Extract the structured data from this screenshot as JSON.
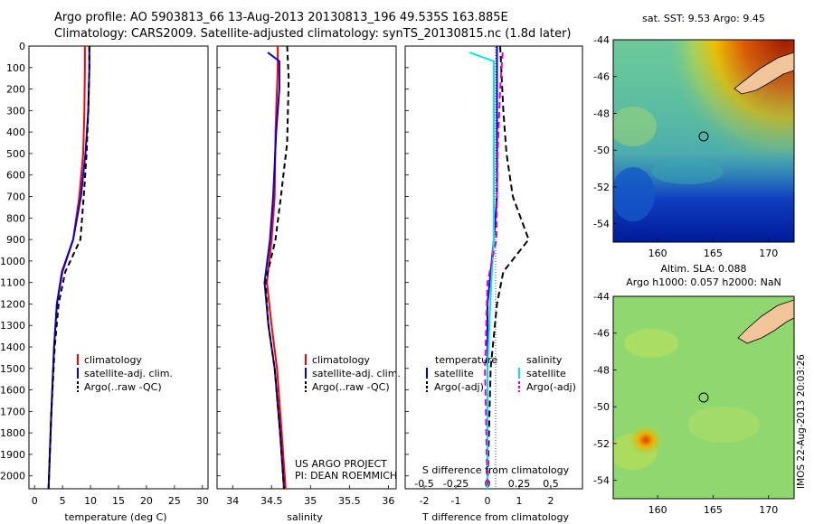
{
  "title_line1": "Argo profile: AO 5903813_66 13-Aug-2013 20130813_196 49.535S 163.885E",
  "title_line2": "Climatology: CARS2009. Satellite-adjusted climatology: synTS_20130815.nc (1.8d later)",
  "depth_ticks": [
    "0",
    "100",
    "200",
    "300",
    "400",
    "500",
    "600",
    "700",
    "800",
    "900",
    "1000",
    "1100",
    "1200",
    "1300",
    "1400",
    "1500",
    "1600",
    "1700",
    "1800",
    "1900",
    "2000"
  ],
  "colors": {
    "clim": "#ff0000",
    "sat": "#0000dd",
    "argo": "#000000",
    "sat_s": "#00e5e5",
    "argo_s": "#e000e0",
    "ocean_deep": "#001a9a",
    "land": "#f2c49a"
  },
  "legend_labels": {
    "clim": "climatology",
    "sat": "satellite-adj. clim.",
    "argo": "Argo(..raw -QC)"
  },
  "diff_legend": {
    "temp_header": "temperature",
    "sal_header": "salinity",
    "sat": "satellite",
    "argo": "Argo(-adj)"
  },
  "project": {
    "line1": "US ARGO PROJECT",
    "line2": "PI: DEAN ROEMMICH"
  },
  "maps": {
    "sst_title": "sat. SST: 9.53 Argo: 9.45",
    "sla_title1": "Altim. SLA: 0.088",
    "sla_title2": "Argo h1000: 0.057 h2000: NaN",
    "lat_ticks": [
      "-44",
      "-46",
      "-48",
      "-50",
      "-52",
      "-54"
    ],
    "lon_ticks": [
      "160",
      "165",
      "170"
    ],
    "stamp": "IMOS 22-Aug-2013 20:03:26"
  },
  "chart_data": [
    {
      "type": "line",
      "name": "temperature profile",
      "xlabel": "temperature (deg C)",
      "ylabel": "",
      "xlim": [
        -1,
        31
      ],
      "ylim": [
        2060,
        0
      ],
      "x_ticks": [
        "0",
        "5",
        "10",
        "15",
        "20",
        "25",
        "30"
      ],
      "series": [
        {
          "name": "climatology",
          "points": [
            [
              9.0,
              0
            ],
            [
              9.0,
              100
            ],
            [
              8.9,
              300
            ],
            [
              8.7,
              500
            ],
            [
              8.0,
              700
            ],
            [
              6.9,
              900
            ],
            [
              5.0,
              1050
            ],
            [
              4.0,
              1200
            ],
            [
              3.5,
              1400
            ],
            [
              3.0,
              1700
            ],
            [
              2.5,
              2060
            ]
          ]
        },
        {
          "name": "satellite-adj. clim.",
          "points": [
            [
              9.8,
              0
            ],
            [
              9.8,
              100
            ],
            [
              9.6,
              300
            ],
            [
              9.1,
              500
            ],
            [
              8.3,
              700
            ],
            [
              6.9,
              900
            ],
            [
              4.9,
              1050
            ],
            [
              4.0,
              1200
            ],
            [
              3.5,
              1400
            ],
            [
              3.0,
              1700
            ],
            [
              2.5,
              2060
            ]
          ]
        },
        {
          "name": "Argo(..raw -QC)",
          "points": [
            [
              9.8,
              0
            ],
            [
              9.8,
              100
            ],
            [
              9.6,
              300
            ],
            [
              9.3,
              500
            ],
            [
              8.8,
              700
            ],
            [
              8.2,
              900
            ],
            [
              5.5,
              1050
            ],
            [
              4.3,
              1200
            ],
            [
              3.6,
              1400
            ],
            [
              3.0,
              1700
            ],
            [
              2.5,
              2060
            ]
          ]
        }
      ]
    },
    {
      "type": "line",
      "name": "salinity profile",
      "xlabel": "salinity",
      "ylabel": "",
      "xlim": [
        33.8,
        36.1
      ],
      "ylim": [
        2060,
        0
      ],
      "x_ticks": [
        "34",
        "34.5",
        "35",
        "35.5",
        "36"
      ],
      "series": [
        {
          "name": "climatology",
          "points": [
            [
              34.58,
              0
            ],
            [
              34.58,
              100
            ],
            [
              34.55,
              400
            ],
            [
              34.54,
              700
            ],
            [
              34.5,
              900
            ],
            [
              34.44,
              1100
            ],
            [
              34.5,
              1300
            ],
            [
              34.57,
              1500
            ],
            [
              34.63,
              1800
            ],
            [
              34.68,
              2060
            ]
          ]
        },
        {
          "name": "satellite-adj. clim.",
          "points": [
            [
              34.45,
              30
            ],
            [
              34.6,
              70
            ],
            [
              34.6,
              200
            ],
            [
              34.56,
              400
            ],
            [
              34.52,
              700
            ],
            [
              34.48,
              900
            ],
            [
              34.41,
              1100
            ],
            [
              34.46,
              1300
            ],
            [
              34.54,
              1500
            ],
            [
              34.61,
              1800
            ],
            [
              34.66,
              2060
            ]
          ]
        },
        {
          "name": "Argo(..raw -QC)",
          "points": [
            [
              34.7,
              0
            ],
            [
              34.72,
              150
            ],
            [
              34.7,
              450
            ],
            [
              34.62,
              700
            ],
            [
              34.55,
              900
            ],
            [
              34.42,
              1100
            ],
            [
              34.46,
              1300
            ],
            [
              34.54,
              1500
            ],
            [
              34.61,
              1800
            ],
            [
              34.66,
              2060
            ]
          ]
        }
      ]
    },
    {
      "type": "line",
      "name": "difference from climatology",
      "xlabel": "T difference from climatology",
      "xlabel2": "S difference from climatology",
      "xlim": [
        -2.6,
        3.0
      ],
      "ylim": [
        2060,
        0
      ],
      "x_ticks": [
        "-2",
        "-1",
        "0",
        "1",
        "2"
      ],
      "x_ticks_s": [
        "-0.5",
        "-0.25",
        "0",
        "0.25",
        "0.5"
      ],
      "series": [
        {
          "name": "temperature satellite",
          "points": [
            [
              0.3,
              0
            ],
            [
              0.3,
              100
            ],
            [
              0.3,
              300
            ],
            [
              0.3,
              500
            ],
            [
              0.3,
              700
            ],
            [
              0.2,
              900
            ],
            [
              0.1,
              1050
            ],
            [
              0.0,
              1200
            ],
            [
              0.0,
              1500
            ],
            [
              0.0,
              1700
            ],
            [
              0.0,
              2060
            ]
          ]
        },
        {
          "name": "temperature Argo(-adj)",
          "points": [
            [
              0.4,
              0
            ],
            [
              0.5,
              300
            ],
            [
              0.6,
              500
            ],
            [
              0.8,
              700
            ],
            [
              1.3,
              900
            ],
            [
              0.5,
              1050
            ],
            [
              0.3,
              1200
            ],
            [
              0.1,
              1500
            ],
            [
              0.0,
              2060
            ]
          ]
        },
        {
          "name": "salinity satellite",
          "points": [
            [
              -0.14,
              30
            ],
            [
              0.05,
              70
            ],
            [
              0.05,
              300
            ],
            [
              0.05,
              600
            ],
            [
              0.05,
              900
            ],
            [
              0.03,
              1100
            ],
            [
              0.0,
              1500
            ],
            [
              0.0,
              2060
            ]
          ]
        },
        {
          "name": "salinity Argo(-adj)",
          "points": [
            [
              0.12,
              30
            ],
            [
              0.1,
              200
            ],
            [
              0.08,
              500
            ],
            [
              0.07,
              900
            ],
            [
              0.0,
              1100
            ],
            [
              -0.02,
              1500
            ],
            [
              0.0,
              2060
            ]
          ]
        }
      ]
    }
  ]
}
